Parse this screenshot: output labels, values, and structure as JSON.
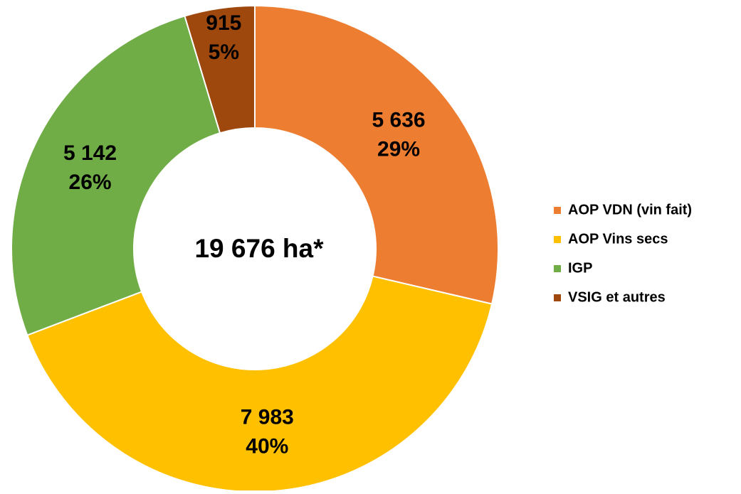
{
  "chart_data": {
    "type": "donut",
    "center_label": "19 676 ha*",
    "categories": [
      "AOP VDN (vin fait)",
      "AOP Vins secs",
      "IGP",
      "VSIG et autres"
    ],
    "values": [
      5636,
      7983,
      5142,
      915
    ],
    "value_labels": [
      "5 636",
      "7 983",
      "5 142",
      "915"
    ],
    "percent_values": [
      29,
      40,
      26,
      5
    ],
    "percent_labels": [
      "29%",
      "40%",
      "26%",
      "5%"
    ],
    "colors": [
      "#ED7D31",
      "#FFC000",
      "#70AD47",
      "#9E480E"
    ],
    "legend": "right"
  }
}
